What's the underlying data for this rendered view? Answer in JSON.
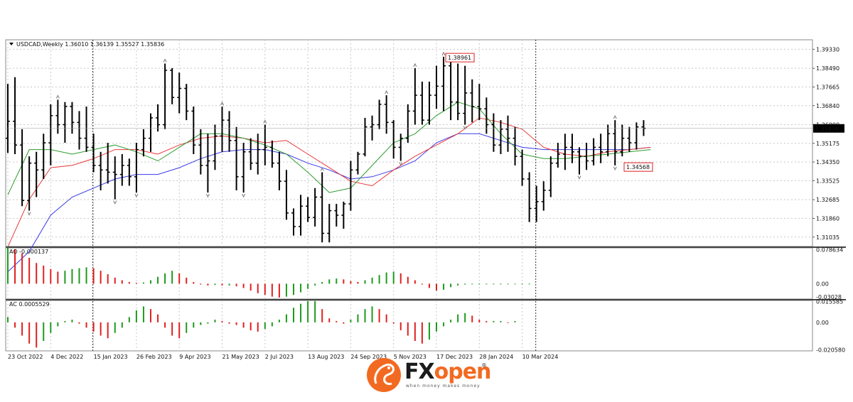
{
  "chart_data": {
    "type": "ohlc",
    "symbol": "USDCAD,Weekly",
    "header_values": [
      "1.36010",
      "1.36139",
      "1.35527",
      "1.35836"
    ],
    "current_price_label": "1.35836",
    "annotations": {
      "high_label": "1.38961",
      "low_label": "1.34568"
    },
    "price_axis_ticks": [
      "1.39330",
      "1.38490",
      "1.37665",
      "1.36840",
      "1.36000",
      "1.35175",
      "1.34350",
      "1.33525",
      "1.32685",
      "1.31860",
      "1.31035"
    ],
    "price_range": [
      1.3062,
      1.3975
    ],
    "x_labels": [
      "23 Oct 2022",
      "4 Dec 2022",
      "15 Jan 2023",
      "26 Feb 2023",
      "9 Apr 2023",
      "21 May 2023",
      "2 Jul 2023",
      "13 Aug 2023",
      "24 Sep 2023",
      "5 Nov 2023",
      "17 Dec 2023",
      "28 Jan 2024",
      "10 Mar 2024"
    ],
    "x_label_index": [
      0,
      6,
      12,
      18,
      24,
      30,
      36,
      42,
      48,
      54,
      60,
      66,
      72
    ],
    "bars": [
      [
        1.354,
        1.378,
        1.3475,
        1.3615
      ],
      [
        1.3615,
        1.381,
        1.347,
        1.351
      ],
      [
        1.351,
        1.358,
        1.324,
        1.3265
      ],
      [
        1.3265,
        1.346,
        1.322,
        1.343
      ],
      [
        1.343,
        1.348,
        1.328,
        1.34
      ],
      [
        1.34,
        1.356,
        1.336,
        1.352
      ],
      [
        1.352,
        1.369,
        1.342,
        1.364
      ],
      [
        1.364,
        1.371,
        1.356,
        1.36
      ],
      [
        1.36,
        1.37,
        1.352,
        1.368
      ],
      [
        1.368,
        1.37,
        1.356,
        1.361
      ],
      [
        1.361,
        1.366,
        1.349,
        1.354
      ],
      [
        1.354,
        1.368,
        1.348,
        1.35
      ],
      [
        1.35,
        1.356,
        1.339,
        1.342
      ],
      [
        1.342,
        1.348,
        1.331,
        1.34
      ],
      [
        1.34,
        1.352,
        1.334,
        1.339
      ],
      [
        1.339,
        1.346,
        1.327,
        1.338
      ],
      [
        1.338,
        1.347,
        1.333,
        1.342
      ],
      [
        1.342,
        1.345,
        1.333,
        1.337
      ],
      [
        1.337,
        1.352,
        1.33,
        1.349
      ],
      [
        1.349,
        1.358,
        1.346,
        1.354
      ],
      [
        1.354,
        1.365,
        1.348,
        1.363
      ],
      [
        1.363,
        1.369,
        1.357,
        1.36
      ],
      [
        1.36,
        1.387,
        1.358,
        1.384
      ],
      [
        1.384,
        1.385,
        1.369,
        1.372
      ],
      [
        1.372,
        1.383,
        1.365,
        1.376
      ],
      [
        1.376,
        1.378,
        1.362,
        1.366
      ],
      [
        1.366,
        1.368,
        1.347,
        1.351
      ],
      [
        1.351,
        1.358,
        1.338,
        1.342
      ],
      [
        1.342,
        1.356,
        1.33,
        1.344
      ],
      [
        1.344,
        1.36,
        1.34,
        1.355
      ],
      [
        1.355,
        1.368,
        1.348,
        1.362
      ],
      [
        1.362,
        1.366,
        1.348,
        1.353
      ],
      [
        1.353,
        1.359,
        1.331,
        1.337
      ],
      [
        1.337,
        1.352,
        1.33,
        1.348
      ],
      [
        1.348,
        1.354,
        1.34,
        1.343
      ],
      [
        1.343,
        1.356,
        1.338,
        1.349
      ],
      [
        1.349,
        1.36,
        1.342,
        1.35
      ],
      [
        1.35,
        1.353,
        1.341,
        1.343
      ],
      [
        1.343,
        1.348,
        1.331,
        1.335
      ],
      [
        1.335,
        1.34,
        1.318,
        1.321
      ],
      [
        1.321,
        1.323,
        1.311,
        1.315
      ],
      [
        1.315,
        1.329,
        1.311,
        1.324
      ],
      [
        1.324,
        1.328,
        1.317,
        1.319
      ],
      [
        1.319,
        1.332,
        1.315,
        1.328
      ],
      [
        1.328,
        1.339,
        1.308,
        1.312
      ],
      [
        1.312,
        1.325,
        1.308,
        1.322
      ],
      [
        1.322,
        1.325,
        1.315,
        1.32
      ],
      [
        1.32,
        1.326,
        1.314,
        1.325
      ],
      [
        1.325,
        1.344,
        1.322,
        1.34
      ],
      [
        1.34,
        1.348,
        1.338,
        1.347
      ],
      [
        1.347,
        1.363,
        1.346,
        1.359
      ],
      [
        1.359,
        1.364,
        1.353,
        1.36
      ],
      [
        1.36,
        1.371,
        1.358,
        1.369
      ],
      [
        1.369,
        1.373,
        1.356,
        1.361
      ],
      [
        1.361,
        1.362,
        1.345,
        1.35
      ],
      [
        1.35,
        1.356,
        1.344,
        1.354
      ],
      [
        1.354,
        1.369,
        1.352,
        1.366
      ],
      [
        1.366,
        1.385,
        1.36,
        1.373
      ],
      [
        1.373,
        1.379,
        1.36,
        1.362
      ],
      [
        1.362,
        1.379,
        1.36,
        1.373
      ],
      [
        1.373,
        1.386,
        1.367,
        1.377
      ],
      [
        1.377,
        1.39,
        1.366,
        1.386
      ],
      [
        1.386,
        1.3896,
        1.362,
        1.37
      ],
      [
        1.37,
        1.387,
        1.362,
        1.365
      ],
      [
        1.365,
        1.386,
        1.36,
        1.374
      ],
      [
        1.374,
        1.38,
        1.361,
        1.368
      ],
      [
        1.368,
        1.378,
        1.362,
        1.367
      ],
      [
        1.367,
        1.372,
        1.356,
        1.36
      ],
      [
        1.36,
        1.365,
        1.348,
        1.351
      ],
      [
        1.351,
        1.362,
        1.347,
        1.358
      ],
      [
        1.358,
        1.364,
        1.348,
        1.354
      ],
      [
        1.354,
        1.359,
        1.342,
        1.346
      ],
      [
        1.346,
        1.349,
        1.333,
        1.336
      ],
      [
        1.336,
        1.339,
        1.317,
        1.323
      ],
      [
        1.323,
        1.333,
        1.317,
        1.326
      ],
      [
        1.326,
        1.335,
        1.322,
        1.331
      ],
      [
        1.331,
        1.346,
        1.328,
        1.343
      ],
      [
        1.343,
        1.352,
        1.341,
        1.347
      ],
      [
        1.347,
        1.356,
        1.34,
        1.35
      ],
      [
        1.35,
        1.356,
        1.343,
        1.348
      ],
      [
        1.348,
        1.35,
        1.338,
        1.346
      ],
      [
        1.346,
        1.352,
        1.34,
        1.344
      ],
      [
        1.344,
        1.354,
        1.342,
        1.35
      ],
      [
        1.35,
        1.356,
        1.343,
        1.348
      ],
      [
        1.348,
        1.36,
        1.346,
        1.356
      ],
      [
        1.356,
        1.362,
        1.342,
        1.348
      ],
      [
        1.348,
        1.36,
        1.346,
        1.354
      ],
      [
        1.354,
        1.359,
        1.348,
        1.352
      ],
      [
        1.352,
        1.361,
        1.349,
        1.359
      ],
      [
        1.359,
        1.362,
        1.355,
        1.3584
      ]
    ],
    "ma_green": [
      [
        0,
        1.329
      ],
      [
        3,
        1.349
      ],
      [
        6,
        1.349
      ],
      [
        9,
        1.347
      ],
      [
        12,
        1.349
      ],
      [
        15,
        1.351
      ],
      [
        18,
        1.348
      ],
      [
        21,
        1.344
      ],
      [
        24,
        1.35
      ],
      [
        27,
        1.356
      ],
      [
        30,
        1.356
      ],
      [
        33,
        1.354
      ],
      [
        36,
        1.351
      ],
      [
        39,
        1.347
      ],
      [
        42,
        1.339
      ],
      [
        45,
        1.33
      ],
      [
        48,
        1.332
      ],
      [
        51,
        1.342
      ],
      [
        54,
        1.352
      ],
      [
        57,
        1.356
      ],
      [
        60,
        1.364
      ],
      [
        63,
        1.37
      ],
      [
        66,
        1.367
      ],
      [
        69,
        1.356
      ],
      [
        72,
        1.347
      ],
      [
        75,
        1.345
      ],
      [
        78,
        1.345
      ],
      [
        81,
        1.346
      ],
      [
        84,
        1.347
      ],
      [
        87,
        1.348
      ],
      [
        90,
        1.349
      ]
    ],
    "ma_red": [
      [
        0,
        1.306
      ],
      [
        3,
        1.327
      ],
      [
        6,
        1.341
      ],
      [
        9,
        1.342
      ],
      [
        12,
        1.345
      ],
      [
        15,
        1.349
      ],
      [
        18,
        1.349
      ],
      [
        21,
        1.347
      ],
      [
        24,
        1.351
      ],
      [
        27,
        1.354
      ],
      [
        30,
        1.355
      ],
      [
        33,
        1.354
      ],
      [
        36,
        1.352
      ],
      [
        39,
        1.353
      ],
      [
        42,
        1.347
      ],
      [
        45,
        1.341
      ],
      [
        48,
        1.335
      ],
      [
        51,
        1.333
      ],
      [
        54,
        1.34
      ],
      [
        57,
        1.346
      ],
      [
        60,
        1.351
      ],
      [
        63,
        1.356
      ],
      [
        66,
        1.363
      ],
      [
        69,
        1.361
      ],
      [
        72,
        1.358
      ],
      [
        75,
        1.35
      ],
      [
        78,
        1.347
      ],
      [
        81,
        1.346
      ],
      [
        84,
        1.348
      ],
      [
        87,
        1.349
      ],
      [
        90,
        1.35
      ]
    ],
    "ma_blue": [
      [
        0,
        1.295
      ],
      [
        3,
        1.304
      ],
      [
        6,
        1.32
      ],
      [
        9,
        1.328
      ],
      [
        12,
        1.332
      ],
      [
        15,
        1.336
      ],
      [
        18,
        1.338
      ],
      [
        21,
        1.338
      ],
      [
        24,
        1.341
      ],
      [
        27,
        1.345
      ],
      [
        30,
        1.348
      ],
      [
        33,
        1.349
      ],
      [
        36,
        1.349
      ],
      [
        39,
        1.347
      ],
      [
        42,
        1.343
      ],
      [
        45,
        1.34
      ],
      [
        48,
        1.336
      ],
      [
        51,
        1.337
      ],
      [
        54,
        1.34
      ],
      [
        57,
        1.344
      ],
      [
        60,
        1.352
      ],
      [
        63,
        1.356
      ],
      [
        66,
        1.356
      ],
      [
        69,
        1.353
      ],
      [
        72,
        1.35
      ],
      [
        75,
        1.349
      ],
      [
        78,
        1.349
      ],
      [
        81,
        1.349
      ],
      [
        84,
        1.349
      ],
      [
        87,
        1.349
      ],
      [
        90,
        1.35
      ]
    ],
    "ao": {
      "label": "AO -0.000137",
      "ticks": [
        "0.078634",
        "0.00",
        "-0.03028"
      ],
      "range": [
        -0.0355,
        0.083
      ],
      "values": [
        0.084,
        0.08,
        0.07,
        0.06,
        0.048,
        0.042,
        0.034,
        0.028,
        0.03,
        0.034,
        0.036,
        0.038,
        0.036,
        0.03,
        0.022,
        0.014,
        0.008,
        0.004,
        0.002,
        0.003,
        0.008,
        0.016,
        0.024,
        0.03,
        0.024,
        0.014,
        0.004,
        -0.002,
        -0.004,
        -0.003,
        -0.004,
        -0.004,
        -0.006,
        -0.01,
        -0.016,
        -0.022,
        -0.026,
        -0.03,
        -0.032,
        -0.03,
        -0.026,
        -0.02,
        -0.012,
        -0.004,
        0.004,
        0.01,
        0.012,
        0.01,
        0.006,
        0.004,
        0.008,
        0.014,
        0.02,
        0.026,
        0.028,
        0.024,
        0.016,
        0.008,
        -0.002,
        -0.01,
        -0.016,
        -0.014,
        -0.008,
        -0.004,
        -0.002,
        -0.001,
        -0.001,
        -0.001,
        -0.001,
        -0.001,
        -0.001,
        -0.001,
        -0.001,
        -0.001
      ]
    },
    "ac": {
      "label": "AC 0.0005529",
      "ticks": [
        "0.015585",
        "0.00",
        "-0.020580"
      ],
      "range": [
        -0.0215,
        0.0165
      ],
      "values": [
        0.004,
        -0.004,
        -0.01,
        -0.016,
        -0.019,
        -0.014,
        -0.008,
        -0.003,
        0.001,
        0.002,
        -0.001,
        -0.004,
        -0.007,
        -0.01,
        -0.012,
        -0.008,
        -0.004,
        0.004,
        0.009,
        0.012,
        0.01,
        0.006,
        -0.004,
        -0.01,
        -0.012,
        -0.008,
        -0.004,
        -0.002,
        -0.001,
        0.002,
        0.001,
        -0.001,
        -0.002,
        -0.004,
        -0.006,
        -0.007,
        -0.005,
        -0.003,
        0.002,
        0.006,
        0.011,
        0.014,
        0.016,
        0.016,
        0.01,
        0.003,
        0.001,
        -0.001,
        0.002,
        0.006,
        0.01,
        0.012,
        0.01,
        0.006,
        -0.001,
        -0.006,
        -0.01,
        -0.014,
        -0.016,
        -0.013,
        -0.007,
        -0.003,
        0.002,
        0.006,
        0.007,
        0.005,
        0.002,
        0.001,
        0.001,
        0.001,
        0.0,
        0.001
      ]
    },
    "colors": {
      "up": "#1e9a1e",
      "down": "#e02020",
      "bar": "#000000",
      "ma_green": "#2e9b2e",
      "ma_red": "#e83a3a",
      "ma_blue": "#3a3ae6",
      "grid": "#c8c8c8",
      "price_box": "#000000",
      "annot": "#e02020"
    }
  },
  "brand": {
    "name_left": "FX",
    "name_right": "open",
    "tagline": "when money makes money",
    "reg": "®"
  }
}
